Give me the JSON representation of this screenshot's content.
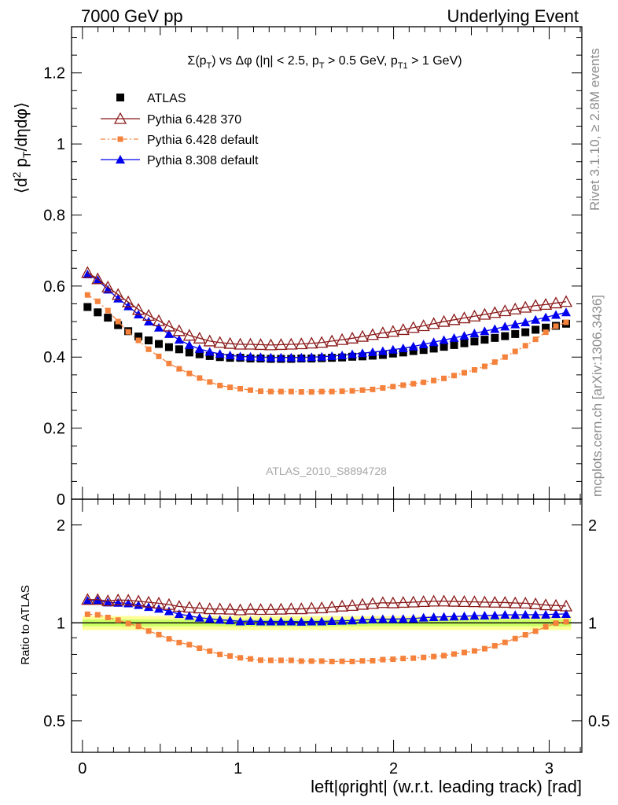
{
  "header": {
    "left": "7000 GeV pp",
    "right": "Underlying Event"
  },
  "side_labels": {
    "rivet": "Rivet 3.1.10, ≥ 2.8M events",
    "mcplots": "mcplots.cern.ch [arXiv:1306.3436]"
  },
  "watermark": "ATLAS_2010_S8894728",
  "colors": {
    "atlas": "#000000",
    "p6_370": "#8b1a1a",
    "p6_default": "#f5823c",
    "p8_default": "#0000ee",
    "band_inner": "#ccff66",
    "band_outer": "#ffff99",
    "ref_line": "#007a00"
  },
  "chart_data": [
    {
      "type": "scatter",
      "panel": "main",
      "title": "Σ(pT) vs Δφ (|η| < 2.5, pT > 0.5 GeV, pT1 > 1 GeV)",
      "title_parts": {
        "a": "Σ(p",
        "a_sub": "T",
        "b": ") vs Δφ (|η| < 2.5, p",
        "b_sub": "T",
        "c": " > 0.5 GeV, p",
        "c_sub": "T1",
        "d": " > 1 GeV)"
      },
      "ylabel": "⟨d² pT/dηdφ⟩",
      "ylabel_parts": {
        "a": "⟨d",
        "sup": "2",
        "b": " p",
        "sub": "T",
        "c": "/dηdφ⟩"
      },
      "ylim": [
        0,
        1.33
      ],
      "xlim": [
        -0.07,
        3.21
      ],
      "y_ticks": [
        "0",
        "0.2",
        "0.4",
        "0.6",
        "0.8",
        "1",
        "1.2"
      ],
      "y_tick_values": [
        0,
        0.2,
        0.4,
        0.6,
        0.8,
        1.0,
        1.2
      ],
      "legend_position": "top-left",
      "legend": [
        "ATLAS",
        "Pythia 6.428 370",
        "Pythia 6.428 default",
        "Pythia 8.308 default"
      ],
      "x": [
        0.0327,
        0.0982,
        0.1636,
        0.2291,
        0.2945,
        0.36,
        0.4254,
        0.4909,
        0.5563,
        0.6218,
        0.6872,
        0.7527,
        0.8181,
        0.8836,
        0.949,
        1.0145,
        1.0799,
        1.1454,
        1.2108,
        1.2763,
        1.3417,
        1.4072,
        1.4726,
        1.5381,
        1.6035,
        1.669,
        1.7344,
        1.7999,
        1.8653,
        1.9308,
        1.9962,
        2.0617,
        2.1271,
        2.1926,
        2.258,
        2.3235,
        2.3889,
        2.4544,
        2.5198,
        2.5853,
        2.6507,
        2.7162,
        2.7816,
        2.8471,
        2.9125,
        2.978,
        3.0434,
        3.1089
      ],
      "series": [
        {
          "name": "ATLAS",
          "values": [
            0.541,
            0.526,
            0.511,
            0.49,
            0.473,
            0.458,
            0.447,
            0.437,
            0.428,
            0.422,
            0.413,
            0.408,
            0.403,
            0.4,
            0.398,
            0.398,
            0.396,
            0.396,
            0.395,
            0.395,
            0.395,
            0.396,
            0.396,
            0.397,
            0.398,
            0.399,
            0.401,
            0.402,
            0.404,
            0.406,
            0.41,
            0.413,
            0.417,
            0.42,
            0.424,
            0.429,
            0.434,
            0.439,
            0.444,
            0.449,
            0.454,
            0.459,
            0.465,
            0.47,
            0.477,
            0.483,
            0.488,
            0.494
          ]
        },
        {
          "name": "Pythia 6.428 370",
          "values": [
            0.638,
            0.62,
            0.597,
            0.576,
            0.555,
            0.534,
            0.517,
            0.502,
            0.487,
            0.474,
            0.461,
            0.453,
            0.445,
            0.441,
            0.438,
            0.436,
            0.436,
            0.435,
            0.434,
            0.435,
            0.436,
            0.437,
            0.439,
            0.441,
            0.445,
            0.449,
            0.453,
            0.458,
            0.463,
            0.468,
            0.472,
            0.477,
            0.483,
            0.488,
            0.494,
            0.5,
            0.505,
            0.51,
            0.515,
            0.52,
            0.525,
            0.53,
            0.535,
            0.54,
            0.545,
            0.548,
            0.552,
            0.556
          ]
        },
        {
          "name": "Pythia 6.428 default",
          "values": [
            0.575,
            0.557,
            0.531,
            0.5,
            0.471,
            0.447,
            0.422,
            0.402,
            0.382,
            0.367,
            0.354,
            0.341,
            0.33,
            0.32,
            0.315,
            0.311,
            0.307,
            0.304,
            0.303,
            0.303,
            0.303,
            0.302,
            0.302,
            0.303,
            0.303,
            0.304,
            0.305,
            0.307,
            0.309,
            0.313,
            0.317,
            0.321,
            0.325,
            0.329,
            0.334,
            0.34,
            0.348,
            0.356,
            0.364,
            0.374,
            0.386,
            0.4,
            0.416,
            0.432,
            0.45,
            0.47,
            0.487,
            0.498
          ]
        },
        {
          "name": "Pythia 8.308 default",
          "values": [
            0.633,
            0.617,
            0.59,
            0.565,
            0.543,
            0.52,
            0.5,
            0.483,
            0.465,
            0.449,
            0.434,
            0.423,
            0.415,
            0.409,
            0.405,
            0.402,
            0.401,
            0.4,
            0.399,
            0.399,
            0.399,
            0.399,
            0.4,
            0.401,
            0.403,
            0.405,
            0.408,
            0.411,
            0.414,
            0.417,
            0.421,
            0.425,
            0.43,
            0.436,
            0.442,
            0.448,
            0.454,
            0.46,
            0.467,
            0.473,
            0.479,
            0.486,
            0.492,
            0.498,
            0.505,
            0.512,
            0.519,
            0.526
          ]
        }
      ]
    },
    {
      "type": "scatter",
      "panel": "ratio",
      "ylabel": "Ratio to ATLAS",
      "ylim": [
        0.4,
        2.4
      ],
      "log_scale_y": true,
      "y_ticks": [
        "0.5",
        "1",
        "2"
      ],
      "y_tick_values": [
        0.5,
        1,
        2
      ],
      "xlabel": "left|φright| (w.r.t. leading track) [rad]",
      "x_ticks": [
        "0",
        "1",
        "2",
        "3"
      ],
      "x_tick_values": [
        0,
        1,
        2,
        3
      ],
      "reference_band": {
        "inner": [
          0.975,
          1.025
        ],
        "outer": [
          0.95,
          1.05
        ]
      },
      "series": [
        {
          "name": "Pythia 6.428 370",
          "values": [
            1.179,
            1.179,
            1.168,
            1.176,
            1.173,
            1.166,
            1.157,
            1.149,
            1.138,
            1.123,
            1.116,
            1.11,
            1.104,
            1.103,
            1.101,
            1.095,
            1.101,
            1.098,
            1.099,
            1.101,
            1.104,
            1.104,
            1.109,
            1.111,
            1.118,
            1.125,
            1.13,
            1.139,
            1.146,
            1.153,
            1.151,
            1.155,
            1.158,
            1.162,
            1.165,
            1.166,
            1.164,
            1.162,
            1.16,
            1.158,
            1.156,
            1.155,
            1.151,
            1.149,
            1.143,
            1.135,
            1.131,
            1.126
          ]
        },
        {
          "name": "Pythia 6.428 default",
          "values": [
            1.063,
            1.059,
            1.039,
            1.02,
            0.996,
            0.976,
            0.944,
            0.92,
            0.893,
            0.87,
            0.857,
            0.836,
            0.819,
            0.8,
            0.791,
            0.781,
            0.775,
            0.768,
            0.767,
            0.767,
            0.767,
            0.763,
            0.763,
            0.763,
            0.761,
            0.762,
            0.761,
            0.764,
            0.765,
            0.771,
            0.773,
            0.777,
            0.779,
            0.783,
            0.788,
            0.793,
            0.802,
            0.811,
            0.82,
            0.833,
            0.85,
            0.871,
            0.895,
            0.919,
            0.943,
            0.973,
            0.998,
            1.008
          ]
        },
        {
          "name": "Pythia 8.308 default",
          "values": [
            1.17,
            1.173,
            1.155,
            1.153,
            1.148,
            1.135,
            1.119,
            1.105,
            1.086,
            1.064,
            1.051,
            1.037,
            1.03,
            1.022,
            1.018,
            1.01,
            1.013,
            1.01,
            1.01,
            1.01,
            1.01,
            1.008,
            1.01,
            1.01,
            1.013,
            1.015,
            1.017,
            1.022,
            1.025,
            1.027,
            1.027,
            1.029,
            1.031,
            1.038,
            1.042,
            1.044,
            1.046,
            1.048,
            1.052,
            1.053,
            1.055,
            1.059,
            1.058,
            1.06,
            1.059,
            1.06,
            1.064,
            1.065
          ]
        }
      ]
    }
  ]
}
